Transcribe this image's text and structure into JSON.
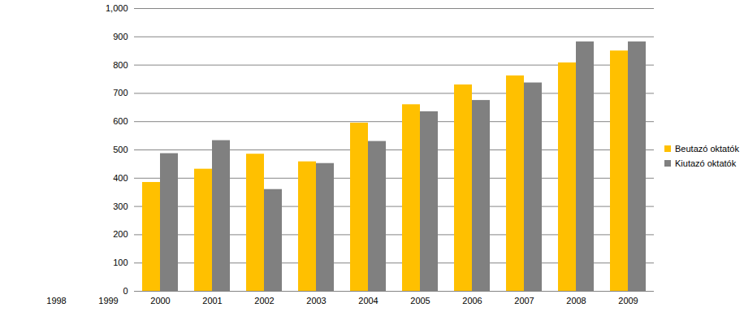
{
  "chart_data": {
    "type": "bar",
    "categories": [
      "1998",
      "1999",
      "2000",
      "2001",
      "2002",
      "2003",
      "2004",
      "2005",
      "2006",
      "2007",
      "2008",
      "2009"
    ],
    "series": [
      {
        "name": "Beutazó oktatók",
        "color": "#ffc000",
        "values": [
          null,
          null,
          385,
          432,
          485,
          458,
          595,
          660,
          730,
          762,
          808,
          850
        ]
      },
      {
        "name": "Kiutazó oktatók",
        "color": "#808080",
        "values": [
          null,
          null,
          487,
          533,
          360,
          452,
          530,
          635,
          675,
          737,
          882,
          882
        ]
      }
    ],
    "ylim": [
      0,
      1000
    ],
    "yticks": [
      0,
      100,
      200,
      300,
      400,
      500,
      600,
      700,
      800,
      900,
      1000
    ],
    "grid": true,
    "legend": "right"
  }
}
